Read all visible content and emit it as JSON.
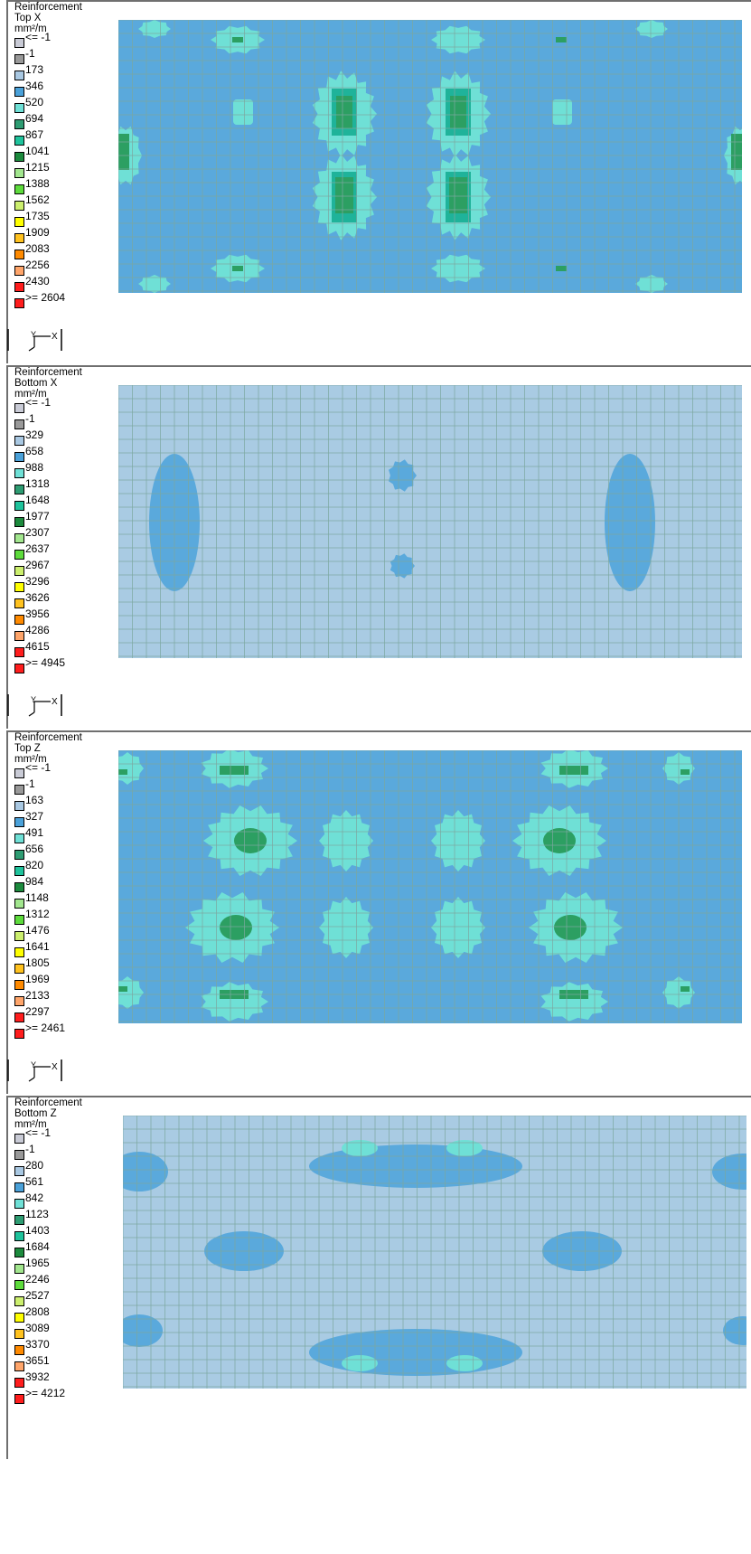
{
  "colors": {
    "light_blue": "#a9cbe3",
    "medium_blue": "#5aa9dc",
    "cyan": "#6fe0d6",
    "teal": "#1fb39a",
    "green": "#2c9f62",
    "dark_green": "#1f8746",
    "grid": "#7ca8a0"
  },
  "legend_swatch_colors": [
    "#c9cbd6",
    "#999999",
    "#a9c8e2",
    "#4aa1d9",
    "#6fe0d6",
    "#2e9c72",
    "#1fc39c",
    "#1c8a3d",
    "#a2e68e",
    "#5ddb3c",
    "#ccef6e",
    "#ffff00",
    "#ffc21f",
    "#ff8a00",
    "#ffa56a",
    "#ff1d1d"
  ],
  "panels": [
    {
      "title": "Reinforcement",
      "subtitle": "Top X",
      "unit": "mm²/m",
      "legend_labels": [
        "<= -1",
        "-1",
        "173",
        "346",
        "520",
        "694",
        "867",
        "1041",
        "1215",
        "1388",
        "1562",
        "1735",
        "1909",
        "2083",
        "2256",
        "2430",
        ">= 2604"
      ]
    },
    {
      "title": "Reinforcement",
      "subtitle": "Bottom X",
      "unit": "mm²/m",
      "legend_labels": [
        "<= -1",
        "-1",
        "329",
        "658",
        "988",
        "1318",
        "1648",
        "1977",
        "2307",
        "2637",
        "2967",
        "3296",
        "3626",
        "3956",
        "4286",
        "4615",
        ">= 4945"
      ]
    },
    {
      "title": "Reinforcement",
      "subtitle": "Top Z",
      "unit": "mm²/m",
      "legend_labels": [
        "<= -1",
        "-1",
        "163",
        "327",
        "491",
        "656",
        "820",
        "984",
        "1148",
        "1312",
        "1476",
        "1641",
        "1805",
        "1969",
        "2133",
        "2297",
        ">= 2461"
      ]
    },
    {
      "title": "Reinforcement",
      "subtitle": "Bottom Z",
      "unit": "mm²/m",
      "legend_labels": [
        "<= -1",
        "-1",
        "280",
        "561",
        "842",
        "1123",
        "1403",
        "1684",
        "1965",
        "2246",
        "2527",
        "2808",
        "3089",
        "3370",
        "3651",
        "3932",
        ">= 4212"
      ]
    }
  ],
  "axis_icon": {
    "horizontal_label": "X",
    "vertical_label": "Y"
  }
}
